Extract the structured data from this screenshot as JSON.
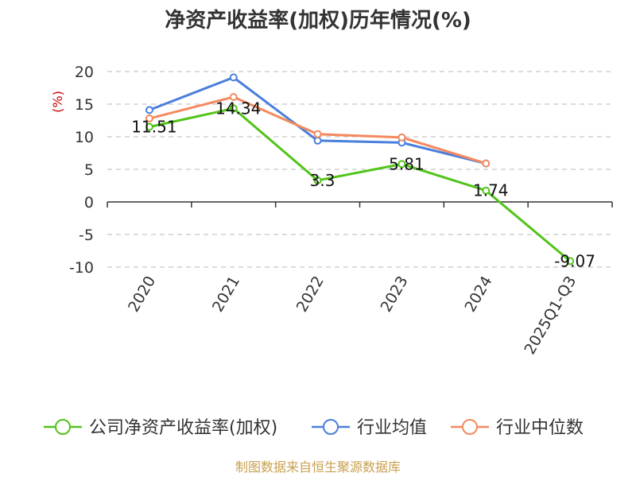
{
  "chart_data": {
    "type": "line",
    "title": "净资产收益率(加权)历年情况(%)",
    "ylabel": "(%)",
    "xlabel": "",
    "ylim": [
      -10,
      20
    ],
    "yticks": [
      20,
      15,
      10,
      5,
      0,
      -5,
      -10
    ],
    "categories": [
      "2020",
      "2021",
      "2022",
      "2023",
      "2024",
      "2025Q1-Q3"
    ],
    "series": [
      {
        "name": "公司净资产收益率(加权)",
        "color": "#52c41a",
        "values": [
          11.51,
          14.34,
          3.3,
          5.81,
          1.74,
          -9.07
        ],
        "labels": [
          "11.51",
          "14.34",
          "3.3",
          "5.81",
          "1.74",
          "-9.07"
        ]
      },
      {
        "name": "行业均值",
        "color": "#4a7fdc",
        "values": [
          14.1,
          19.1,
          9.4,
          9.1,
          5.9,
          null
        ]
      },
      {
        "name": "行业中位数",
        "color": "#f4895f",
        "values": [
          12.8,
          16.1,
          10.4,
          9.9,
          5.9,
          null
        ]
      }
    ],
    "grid": true,
    "legend": "bottom"
  },
  "source_text": "制图数据来自恒生聚源数据库"
}
